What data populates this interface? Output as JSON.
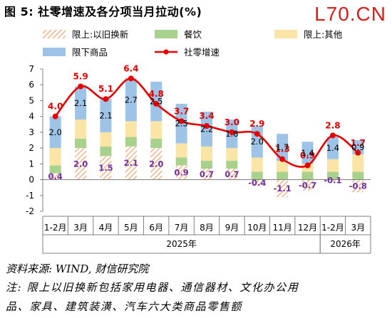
{
  "title": "图 5: 社零增速及各分项当月拉动(%)",
  "watermark": "L70.CN",
  "source": "资料来源: WIND, 财信研究院",
  "note_line1": "注: 限上以旧换新包括家用电器、通信器材、文化办公用",
  "note_line2": "品、家具、建筑装潢、汽车六大类商品零售额",
  "chart_data": {
    "type": "bar",
    "stacked": true,
    "categories": [
      "1-2月",
      "3月",
      "4月",
      "5月",
      "6月",
      "7月",
      "8月",
      "9月",
      "10月",
      "11月",
      "12月",
      "1-2月",
      "3月"
    ],
    "year_groups": [
      {
        "label": "2025年",
        "from": 0,
        "to": 10
      },
      {
        "label": "2026年",
        "from": 11,
        "to": 12
      }
    ],
    "ylim": [
      -2,
      7
    ],
    "yticks": [
      -2,
      -1,
      0,
      1,
      2,
      3,
      4,
      5,
      6,
      7
    ],
    "legend_position": "top",
    "series": [
      {
        "name": "限上:以旧换新",
        "color": "#f2b083",
        "pattern": "hatch",
        "label_color": "#7030a0",
        "values": [
          0.4,
          2.0,
          1.5,
          2.1,
          2.0,
          0.9,
          0.7,
          0.7,
          -0.4,
          -1.1,
          -0.7,
          -0.1,
          -0.8
        ]
      },
      {
        "name": "餐饮",
        "color": "#a9d18e",
        "values": [
          0.5,
          0.6,
          0.6,
          0.6,
          0.6,
          0.5,
          0.5,
          0.5,
          0.5,
          0.5,
          0.5,
          0.5,
          0.5
        ]
      },
      {
        "name": "限上:其他",
        "color": "#fbe5a6",
        "values": [
          1.1,
          1.2,
          0.9,
          1.0,
          1.1,
          0.9,
          0.9,
          0.8,
          0.9,
          0.7,
          0.5,
          0.8,
          1.1
        ]
      },
      {
        "name": "限下商品",
        "color": "#9dc3e6",
        "label_color": "#000000",
        "values": [
          2.0,
          2.1,
          2.1,
          2.7,
          2.5,
          2.5,
          2.2,
          1.8,
          2.0,
          1.7,
          1.4,
          1.4,
          0.9
        ]
      },
      {
        "name": "社零增速",
        "type": "line",
        "color": "#e60000",
        "values": [
          4.0,
          5.9,
          5.1,
          6.4,
          4.8,
          3.7,
          3.4,
          3.0,
          2.9,
          1.3,
          0.9,
          2.8,
          1.7
        ]
      }
    ]
  }
}
